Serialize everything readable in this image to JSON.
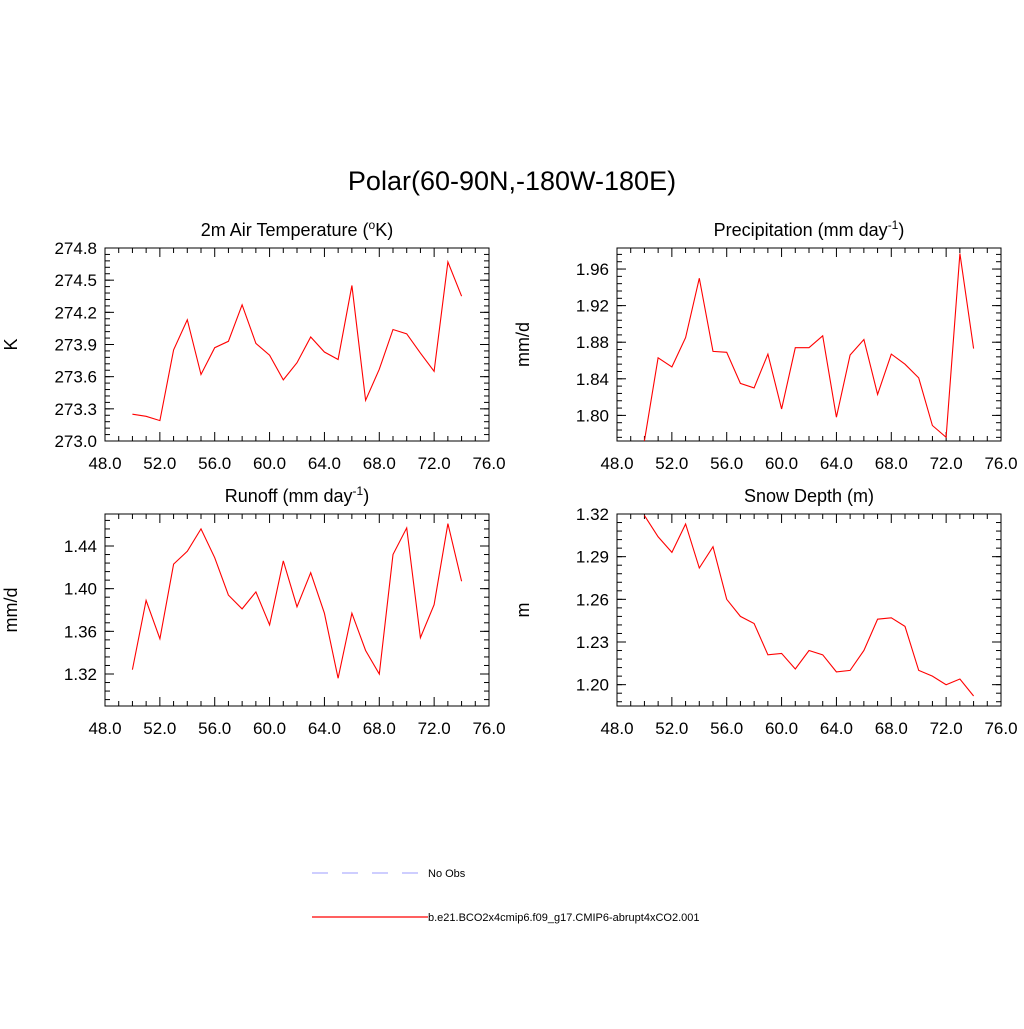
{
  "title": "Polar(60-90N,-180W-180E)",
  "colors": {
    "model": "#ff0000",
    "obs": "#b0b0ff",
    "axis": "#000000"
  },
  "legend": {
    "obs_label": "No Obs",
    "model_label": "b.e21.BCO2x4cmip6.f09_g17.CMIP6-abrupt4xCO2.001"
  },
  "chart_data": [
    {
      "type": "line",
      "title_main": "2m Air Temperature (",
      "title_sup": "o",
      "title_tail": "K)",
      "ylabel": "K",
      "xlim": [
        48,
        76
      ],
      "ylim": [
        273.0,
        274.8
      ],
      "xticks": [
        48,
        52,
        56,
        60,
        64,
        68,
        72,
        76
      ],
      "xtick_labels": [
        "48.0",
        "52.0",
        "56.0",
        "60.0",
        "64.0",
        "68.0",
        "72.0",
        "76.0"
      ],
      "yticks": [
        273.0,
        273.3,
        273.6,
        273.9,
        274.2,
        274.5,
        274.8
      ],
      "ytick_labels": [
        "273.0",
        "273.3",
        "273.6",
        "273.9",
        "274.2",
        "274.5",
        "274.8"
      ],
      "series": [
        {
          "name": "b.e21.BCO2x4cmip6.f09_g17.CMIP6-abrupt4xCO2.001",
          "x": [
            50,
            51,
            52,
            53,
            54,
            55,
            56,
            57,
            58,
            59,
            60,
            61,
            62,
            63,
            64,
            65,
            66,
            67,
            68,
            69,
            70,
            71,
            72,
            73,
            74
          ],
          "y": [
            273.25,
            273.23,
            273.19,
            273.85,
            274.13,
            273.62,
            273.87,
            273.93,
            274.27,
            273.91,
            273.8,
            273.57,
            273.73,
            273.97,
            273.83,
            273.76,
            274.45,
            273.38,
            273.67,
            274.04,
            274.0,
            273.82,
            273.65,
            274.67,
            274.35
          ]
        }
      ]
    },
    {
      "type": "line",
      "title_main": "Precipitation (mm day",
      "title_sup": "-1",
      "title_tail": ")",
      "ylabel": "mm/d",
      "xlim": [
        48,
        76
      ],
      "ylim": [
        1.772,
        1.983
      ],
      "xticks": [
        48,
        52,
        56,
        60,
        64,
        68,
        72,
        76
      ],
      "xtick_labels": [
        "48.0",
        "52.0",
        "56.0",
        "60.0",
        "64.0",
        "68.0",
        "72.0",
        "76.0"
      ],
      "yticks": [
        1.8,
        1.84,
        1.88,
        1.92,
        1.96
      ],
      "ytick_labels": [
        "1.80",
        "1.84",
        "1.88",
        "1.92",
        "1.96"
      ],
      "series": [
        {
          "name": "b.e21.BCO2x4cmip6.f09_g17.CMIP6-abrupt4xCO2.001",
          "x": [
            50,
            51,
            52,
            53,
            54,
            55,
            56,
            57,
            58,
            59,
            60,
            61,
            62,
            63,
            64,
            65,
            66,
            67,
            68,
            69,
            70,
            71,
            72,
            73,
            74
          ],
          "y": [
            1.772,
            1.863,
            1.853,
            1.885,
            1.95,
            1.87,
            1.869,
            1.835,
            1.83,
            1.867,
            1.807,
            1.874,
            1.874,
            1.887,
            1.798,
            1.866,
            1.883,
            1.823,
            1.867,
            1.856,
            1.841,
            1.789,
            1.776,
            1.977,
            1.873
          ]
        }
      ]
    },
    {
      "type": "line",
      "title_main": "Runoff (mm day",
      "title_sup": "-1",
      "title_tail": ")",
      "ylabel": "mm/d",
      "xlim": [
        48,
        76
      ],
      "ylim": [
        1.29,
        1.47
      ],
      "xticks": [
        48,
        52,
        56,
        60,
        64,
        68,
        72,
        76
      ],
      "xtick_labels": [
        "48.0",
        "52.0",
        "56.0",
        "60.0",
        "64.0",
        "68.0",
        "72.0",
        "76.0"
      ],
      "yticks": [
        1.32,
        1.36,
        1.4,
        1.44
      ],
      "ytick_labels": [
        "1.32",
        "1.36",
        "1.40",
        "1.44"
      ],
      "series": [
        {
          "name": "b.e21.BCO2x4cmip6.f09_g17.CMIP6-abrupt4xCO2.001",
          "x": [
            50,
            51,
            52,
            53,
            54,
            55,
            56,
            57,
            58,
            59,
            60,
            61,
            62,
            63,
            64,
            65,
            66,
            67,
            68,
            69,
            70,
            71,
            72,
            73,
            74
          ],
          "y": [
            1.324,
            1.389,
            1.353,
            1.423,
            1.435,
            1.456,
            1.429,
            1.394,
            1.381,
            1.397,
            1.366,
            1.426,
            1.383,
            1.415,
            1.377,
            1.316,
            1.377,
            1.342,
            1.32,
            1.432,
            1.457,
            1.354,
            1.385,
            1.461,
            1.407
          ]
        }
      ]
    },
    {
      "type": "line",
      "title_main": "Snow Depth (m)",
      "title_sup": "",
      "title_tail": "",
      "ylabel": "m",
      "xlim": [
        48,
        76
      ],
      "ylim": [
        1.185,
        1.32
      ],
      "xticks": [
        48,
        52,
        56,
        60,
        64,
        68,
        72,
        76
      ],
      "xtick_labels": [
        "48.0",
        "52.0",
        "56.0",
        "60.0",
        "64.0",
        "68.0",
        "72.0",
        "76.0"
      ],
      "yticks": [
        1.2,
        1.23,
        1.26,
        1.29,
        1.32
      ],
      "ytick_labels": [
        "1.20",
        "1.23",
        "1.26",
        "1.29",
        "1.32"
      ],
      "series": [
        {
          "name": "b.e21.BCO2x4cmip6.f09_g17.CMIP6-abrupt4xCO2.001",
          "x": [
            50,
            51,
            52,
            53,
            54,
            55,
            56,
            57,
            58,
            59,
            60,
            61,
            62,
            63,
            64,
            65,
            66,
            67,
            68,
            69,
            70,
            71,
            72,
            73,
            74
          ],
          "y": [
            1.319,
            1.304,
            1.293,
            1.313,
            1.282,
            1.297,
            1.26,
            1.248,
            1.243,
            1.221,
            1.222,
            1.211,
            1.224,
            1.221,
            1.209,
            1.21,
            1.224,
            1.246,
            1.247,
            1.241,
            1.21,
            1.206,
            1.2,
            1.204,
            1.192
          ]
        }
      ]
    }
  ]
}
